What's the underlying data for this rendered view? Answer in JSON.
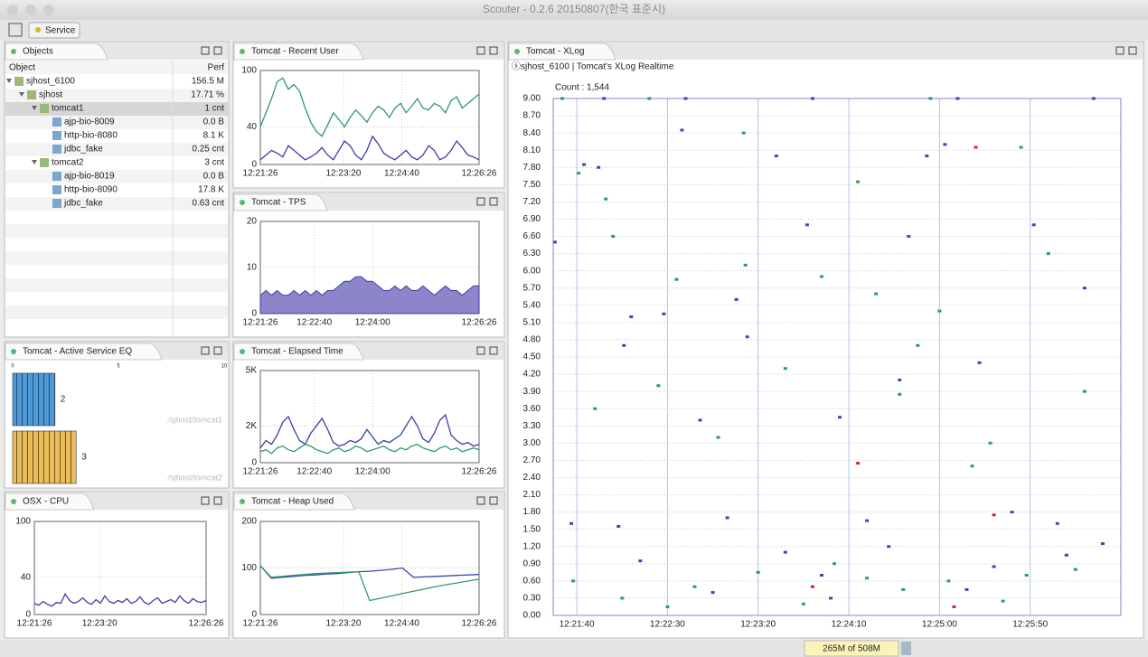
{
  "window": {
    "title": "Scouter - 0.2.6 20150807(한국 표준시)",
    "toolbar_tab": "Service",
    "memory": "265M of 508M"
  },
  "objects": {
    "title": "Objects",
    "columns": [
      "Object",
      "Perf"
    ],
    "rows": [
      [
        "sjhost_6100",
        "156.5 M"
      ],
      [
        "sjhost",
        "17.71 %"
      ],
      [
        "tomcat1",
        "1 cnt"
      ],
      [
        "ajp-bio-8009",
        "0.0 B"
      ],
      [
        "http-bio-8080",
        "8.1 K"
      ],
      [
        "jdbc_fake",
        "0.25 cnt"
      ],
      [
        "tomcat2",
        "3 cnt"
      ],
      [
        "ajp-bio-8019",
        "0.0 B"
      ],
      [
        "http-bio-8090",
        "17.8 K"
      ],
      [
        "jdbc_fake",
        "0.63 cnt"
      ]
    ]
  },
  "chart_data": [
    {
      "type": "line",
      "title": "Tomcat - Recent User",
      "xlim": [
        "12:21:26",
        "12:26:26"
      ],
      "xticks": [
        "12:21:26",
        "12:23:20",
        "12:24:40",
        "12:26:26"
      ],
      "ylim": [
        0,
        100
      ],
      "yticks": [
        0,
        40,
        100
      ],
      "grid": true,
      "series": [
        {
          "color": "#2e9a6a",
          "values": [
            40,
            55,
            70,
            88,
            92,
            80,
            85,
            78,
            60,
            45,
            35,
            30,
            42,
            55,
            48,
            40,
            50,
            58,
            52,
            45,
            55,
            62,
            58,
            50,
            60,
            65,
            55,
            62,
            70,
            60,
            58,
            65,
            62,
            55,
            68,
            72,
            60,
            65,
            70,
            75
          ]
        },
        {
          "color": "#3b3fa8",
          "values": [
            5,
            10,
            15,
            12,
            8,
            20,
            15,
            10,
            5,
            8,
            12,
            18,
            10,
            5,
            15,
            25,
            20,
            10,
            5,
            15,
            30,
            22,
            12,
            8,
            5,
            10,
            15,
            8,
            5,
            10,
            20,
            15,
            5,
            8,
            15,
            25,
            18,
            10,
            8,
            5
          ]
        }
      ]
    },
    {
      "type": "area",
      "title": "Tomcat - TPS",
      "xlim": [
        "12:21:26",
        "12:26:26"
      ],
      "xticks": [
        "12:21:26",
        "12:22:40",
        "12:24:00",
        "12:26:26"
      ],
      "ylim": [
        0,
        20
      ],
      "yticks": [
        0,
        10,
        20
      ],
      "grid": true,
      "series": [
        {
          "color": "#8a86c9",
          "values": [
            4,
            5,
            4,
            5,
            4,
            4,
            5,
            4,
            5,
            4,
            5,
            4,
            5,
            5,
            6,
            7,
            7,
            8,
            8,
            7,
            7,
            6,
            5,
            5,
            6,
            5,
            6,
            5,
            5,
            6,
            5,
            4,
            5,
            6,
            5,
            5,
            4,
            5,
            6,
            6
          ]
        }
      ]
    },
    {
      "type": "line",
      "title": "Tomcat - Elapsed Time",
      "xlim": [
        "12:21:26",
        "12:26:26"
      ],
      "xticks": [
        "12:21:26",
        "12:22:40",
        "12:24:00",
        "12:26:26"
      ],
      "ylim": [
        0,
        5000
      ],
      "yticks": [
        0,
        {
          "value": 2000,
          "label": "2K"
        },
        {
          "value": 5000,
          "label": "5K"
        }
      ],
      "grid": true,
      "series": [
        {
          "color": "#3b3fa8",
          "values": [
            800,
            1200,
            1000,
            1500,
            2200,
            2500,
            1800,
            1200,
            1000,
            1600,
            2000,
            2400,
            1800,
            1100,
            900,
            1000,
            1200,
            1100,
            1300,
            1800,
            1400,
            1000,
            1200,
            1100,
            1300,
            1500,
            2000,
            2500,
            2000,
            1300,
            1100,
            1600,
            2300,
            2600,
            1500,
            1200,
            1000,
            1100,
            900,
            1000
          ]
        },
        {
          "color": "#2e9a6a",
          "values": [
            600,
            700,
            500,
            800,
            900,
            700,
            600,
            800,
            1000,
            900,
            700,
            600,
            500,
            700,
            800,
            600,
            700,
            900,
            800,
            600,
            700,
            800,
            900,
            700,
            600,
            800,
            700,
            900,
            1000,
            800,
            700,
            600,
            800,
            900,
            700,
            800,
            600,
            700,
            800,
            700
          ]
        }
      ]
    },
    {
      "type": "line",
      "title": "Tomcat - Heap Used",
      "xlim": [
        "12:21:26",
        "12:26:26"
      ],
      "xticks": [
        "12:21:26",
        "12:23:20",
        "12:24:40",
        "12:26:26"
      ],
      "ylim": [
        0,
        200
      ],
      "yticks": [
        0,
        100,
        200
      ],
      "grid": true,
      "series": [
        {
          "color": "#3b4aa8",
          "values": [
            105,
            78,
            80,
            82,
            84,
            85,
            87,
            88,
            90,
            92,
            93,
            95,
            97,
            100,
            80,
            81,
            82,
            83,
            84,
            85,
            86
          ]
        },
        {
          "color": "#2e9a6a",
          "values": [
            105,
            80,
            82,
            84,
            86,
            88,
            89,
            90,
            91,
            92,
            30,
            35,
            40,
            45,
            50,
            55,
            60,
            64,
            68,
            72,
            76
          ]
        }
      ]
    },
    {
      "type": "bar",
      "orientation": "horizontal",
      "title": "Tomcat - Active Service EQ",
      "categories": [
        "/sjhost/tomcat1",
        "/sjhost/tomcat2"
      ],
      "values": [
        2,
        3
      ],
      "colors": [
        "#4f9ad6",
        "#e8bd5a"
      ],
      "xlim": [
        0,
        10
      ],
      "xticks": [
        0,
        5,
        10
      ]
    },
    {
      "type": "line",
      "title": "OSX - CPU",
      "xlim": [
        "12:21:26",
        "12:26:26"
      ],
      "xticks": [
        "12:21:26",
        "12:23:20",
        "12:26:26"
      ],
      "ylim": [
        0,
        100
      ],
      "yticks": [
        0,
        40,
        100
      ],
      "grid": true,
      "series": [
        {
          "color": "#3b3fa8",
          "values": [
            12,
            10,
            14,
            11,
            9,
            13,
            12,
            22,
            15,
            12,
            14,
            18,
            13,
            11,
            16,
            12,
            20,
            14,
            12,
            15,
            13,
            17,
            12,
            14,
            19,
            13,
            11,
            15,
            18,
            12,
            14,
            16,
            13,
            20,
            15,
            12,
            17,
            14,
            13,
            15
          ]
        }
      ]
    },
    {
      "type": "scatter",
      "title": "Tomcat - XLog",
      "subtitle": "ⓢsjhost_6100 | Tomcat's XLog Realtime",
      "annotation": "Count : 1,544",
      "xlim": [
        "12:21:27",
        "12:26:40"
      ],
      "xticks": [
        "12:21:40",
        "12:22:30",
        "12:23:20",
        "12:24:10",
        "12:25:00",
        "12:25:50"
      ],
      "ylim": [
        0,
        9
      ],
      "grid": true,
      "yticks": [
        {
          "value": 0,
          "label": "0.00"
        },
        {
          "value": 0.3,
          "label": "0.30"
        },
        {
          "value": 0.6,
          "label": "0.60"
        },
        {
          "value": 0.9,
          "label": "0.90"
        },
        {
          "value": 1.2,
          "label": "1.20"
        },
        {
          "value": 1.5,
          "label": "1.50"
        },
        {
          "value": 1.8,
          "label": "1.80"
        },
        {
          "value": 2.1,
          "label": "2.10"
        },
        {
          "value": 2.4,
          "label": "2.40"
        },
        {
          "value": 2.7,
          "label": "2.70"
        },
        {
          "value": 3,
          "label": "3.00"
        },
        {
          "value": 3.3,
          "label": "3.30"
        },
        {
          "value": 3.6,
          "label": "3.60"
        },
        {
          "value": 3.9,
          "label": "3.90"
        },
        {
          "value": 4.2,
          "label": "4.20"
        },
        {
          "value": 4.5,
          "label": "4.50"
        },
        {
          "value": 4.8,
          "label": "4.80"
        },
        {
          "value": 5.1,
          "label": "5.10"
        },
        {
          "value": 5.4,
          "label": "5.40"
        },
        {
          "value": 5.7,
          "label": "5.70"
        },
        {
          "value": 6,
          "label": "6.00"
        },
        {
          "value": 6.3,
          "label": "6.30"
        },
        {
          "value": 6.6,
          "label": "6.60"
        },
        {
          "value": 6.9,
          "label": "6.90"
        },
        {
          "value": 7.2,
          "label": "7.20"
        },
        {
          "value": 7.5,
          "label": "7.50"
        },
        {
          "value": 7.8,
          "label": "7.80"
        },
        {
          "value": 8.1,
          "label": "8.10"
        },
        {
          "value": 8.4,
          "label": "8.40"
        },
        {
          "value": 8.7,
          "label": "8.70"
        },
        {
          "value": 9,
          "label": "9.00"
        }
      ],
      "series": [
        {
          "color": "#3b48b0",
          "x": [
            "12:21:28",
            "12:21:37",
            "12:21:44",
            "12:21:52",
            "12:22:03",
            "12:22:06",
            "12:22:10",
            "12:22:28",
            "12:22:38",
            "12:22:48",
            "12:23:03",
            "12:23:08",
            "12:23:14",
            "12:23:30",
            "12:23:47",
            "12:24:05",
            "12:24:20",
            "12:24:38",
            "12:24:43",
            "12:24:53",
            "12:25:03",
            "12:25:22",
            "12:25:40",
            "12:25:52",
            "12:26:05",
            "12:26:20",
            "12:22:15",
            "12:23:35",
            "12:24:32",
            "12:25:30",
            "12:26:10",
            "12:22:55",
            "12:24:00",
            "12:25:15",
            "12:26:30",
            "12:23:55",
            "12:21:55",
            "12:22:40",
            "12:23:50",
            "12:25:10",
            "12:26:25"
          ],
          "values": [
            6.5,
            1.6,
            7.85,
            7.8,
            1.55,
            4.7,
            5.2,
            5.25,
            8.45,
            3.4,
            1.7,
            5.5,
            4.85,
            8.0,
            6.8,
            3.45,
            1.65,
            4.1,
            6.6,
            8.0,
            8.2,
            4.4,
            1.8,
            6.8,
            1.6,
            5.7,
            0.95,
            1.1,
            1.2,
            0.85,
            1.05,
            0.4,
            0.3,
            0.45,
            1.25,
            0.7,
            9.0,
            9.0,
            9.0,
            9.0,
            9.0
          ]
        },
        {
          "color": "#2e9a6a",
          "x": [
            "12:21:32",
            "12:21:41",
            "12:21:50",
            "12:21:56",
            "12:22:00",
            "12:22:25",
            "12:22:35",
            "12:22:58",
            "12:23:12",
            "12:23:13",
            "12:23:35",
            "12:23:55",
            "12:24:15",
            "12:24:25",
            "12:24:38",
            "12:24:48",
            "12:25:00",
            "12:25:18",
            "12:25:28",
            "12:25:45",
            "12:26:00",
            "12:26:20",
            "12:21:38",
            "12:22:05",
            "12:22:45",
            "12:23:20",
            "12:24:02",
            "12:24:40",
            "12:25:05",
            "12:25:48",
            "12:26:15",
            "12:22:30",
            "12:23:45",
            "12:25:35",
            "12:24:20",
            "12:22:20",
            "12:24:55"
          ],
          "values": [
            9.0,
            7.7,
            3.6,
            7.25,
            6.6,
            4.0,
            5.85,
            3.1,
            8.4,
            6.1,
            4.3,
            5.9,
            7.55,
            5.6,
            3.85,
            4.7,
            5.3,
            2.6,
            3.0,
            8.15,
            6.3,
            3.9,
            0.6,
            0.3,
            0.5,
            0.75,
            0.9,
            0.45,
            0.6,
            0.7,
            0.8,
            0.15,
            0.2,
            0.25,
            0.65,
            9.0,
            9.0
          ]
        },
        {
          "color": "#e02020",
          "x": [
            "12:23:50",
            "12:24:15",
            "12:25:08",
            "12:25:20",
            "12:25:30"
          ],
          "values": [
            0.5,
            2.65,
            0.15,
            8.15,
            1.75
          ]
        }
      ]
    }
  ]
}
